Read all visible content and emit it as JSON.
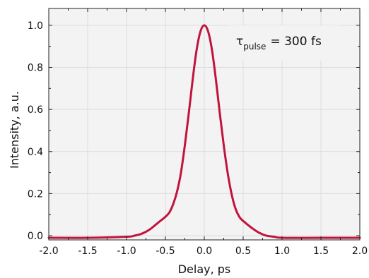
{
  "chart_data": {
    "type": "line",
    "title": "",
    "xlabel": "Delay, ps",
    "ylabel": "Intensity, a.u.",
    "xlim": [
      -2.0,
      2.0
    ],
    "ylim": [
      -0.02,
      1.08
    ],
    "x_ticks": [
      "-2.0",
      "-1.5",
      "-1.0",
      "-0.5",
      "0.0",
      "0.5",
      "1.0",
      "1.5",
      "2.0"
    ],
    "y_ticks": [
      "0.0",
      "0.2",
      "0.4",
      "0.6",
      "0.8",
      "1.0"
    ],
    "grid": true,
    "annotation": {
      "symbol": "τ",
      "subscript": "pulse",
      "text": "= 300 fs",
      "placement": "top-right"
    },
    "series": [
      {
        "color": "#c0143c",
        "x": [
          -2.0,
          -1.5,
          -1.0,
          -0.9,
          -0.8,
          -0.7,
          -0.6,
          -0.5,
          -0.45,
          -0.4,
          -0.35,
          -0.3,
          -0.25,
          -0.2,
          -0.15,
          -0.1,
          -0.05,
          0.0,
          0.05,
          0.1,
          0.15,
          0.2,
          0.25,
          0.3,
          0.35,
          0.4,
          0.45,
          0.5,
          0.6,
          0.7,
          0.8,
          0.9,
          1.0,
          1.5,
          2.0
        ],
        "values": [
          -0.01,
          -0.01,
          -0.005,
          0.0,
          0.01,
          0.03,
          0.06,
          0.09,
          0.11,
          0.15,
          0.21,
          0.3,
          0.43,
          0.58,
          0.74,
          0.88,
          0.97,
          1.0,
          0.97,
          0.88,
          0.74,
          0.58,
          0.43,
          0.3,
          0.2,
          0.13,
          0.09,
          0.07,
          0.04,
          0.015,
          0.0,
          -0.005,
          -0.01,
          -0.01,
          -0.01
        ]
      }
    ]
  }
}
